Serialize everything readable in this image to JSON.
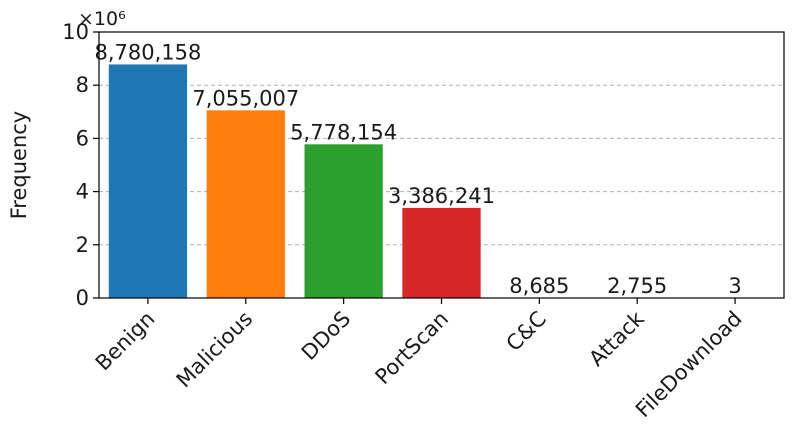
{
  "chart_data": {
    "type": "bar",
    "categories": [
      "Benign",
      "Malicious",
      "DDoS",
      "PortScan",
      "C&C",
      "Attack",
      "FileDownload"
    ],
    "values": [
      8780158,
      7055007,
      5778154,
      3386241,
      8685,
      2755,
      3
    ],
    "data_labels": [
      "8,780,158",
      "7,055,007",
      "5,778,154",
      "3,386,241",
      "8,685",
      "2,755",
      "3"
    ],
    "colors": [
      "#1f77b4",
      "#ff7f0e",
      "#2ca02c",
      "#d62728",
      "#9467bd",
      "#8c564b",
      "#e377c2"
    ],
    "title": "",
    "xlabel": "",
    "ylabel": "Frequency",
    "scale_label": "×10⁶",
    "ylim": [
      0,
      10000000
    ],
    "yticks": [
      0,
      2,
      4,
      6,
      8,
      10
    ],
    "ytick_multiplier": 1000000,
    "grid": "horizontal dashed",
    "legend": "none"
  }
}
